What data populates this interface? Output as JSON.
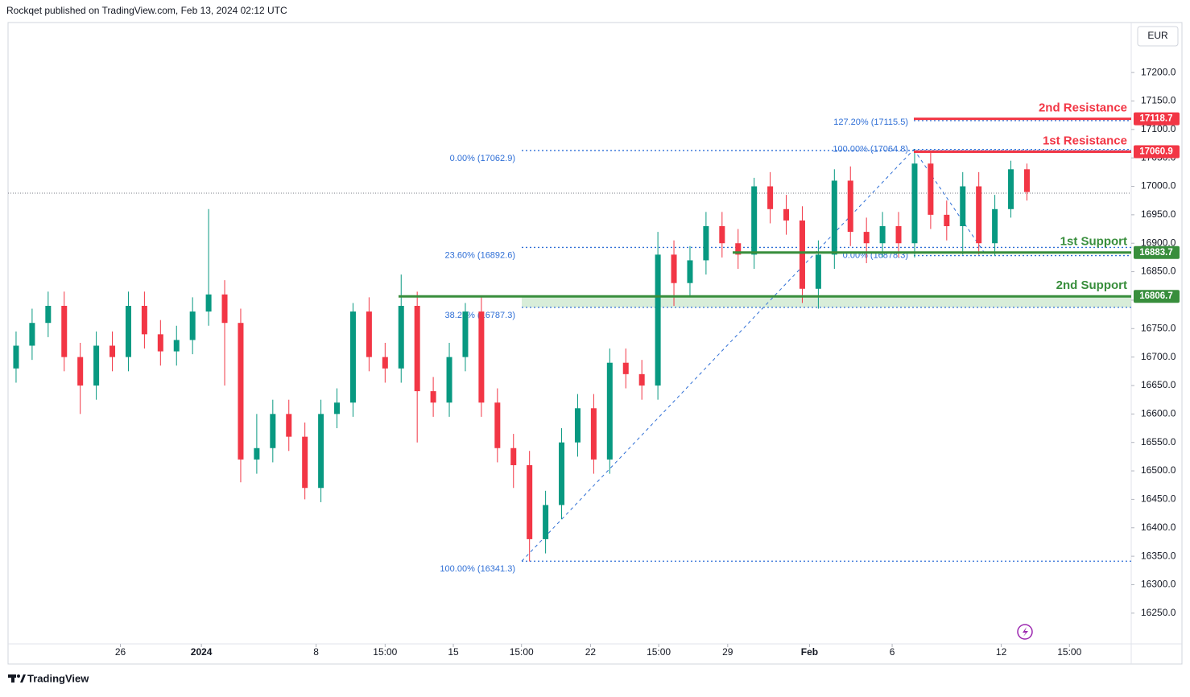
{
  "header": "Rockqet published on TradingView.com, Feb 13, 2024 02:12 UTC",
  "footer": "TradingView",
  "chart_data": {
    "type": "candlestick",
    "currency": "EUR",
    "up_color": "#089981",
    "down_color": "#f23645",
    "fib_color": "#2f6fd6",
    "x": [
      1,
      3,
      5,
      7,
      9,
      11,
      13,
      15,
      17,
      19,
      21,
      23,
      25,
      27,
      29,
      31,
      33,
      35,
      37,
      39,
      41,
      43,
      45,
      47,
      49,
      51,
      53,
      55,
      57,
      59,
      61,
      63,
      65,
      67,
      69,
      71,
      73,
      75,
      77,
      79,
      81,
      83,
      85,
      87,
      89,
      91,
      93,
      95,
      97,
      99,
      101,
      103,
      105,
      107,
      109,
      111,
      113,
      115,
      117,
      119,
      121,
      123,
      125,
      127
    ],
    "open": [
      16680,
      16720,
      16760,
      16790,
      16700,
      16650,
      16720,
      16700,
      16790,
      16740,
      16710,
      16730,
      16780,
      16810,
      16760,
      16520,
      16540,
      16600,
      16560,
      16470,
      16600,
      16620,
      16780,
      16700,
      16680,
      16790,
      16640,
      16620,
      16700,
      16780,
      16620,
      16540,
      16510,
      16380,
      16440,
      16550,
      16610,
      16520,
      16690,
      16670,
      16650,
      16880,
      16830,
      16870,
      16930,
      16900,
      16880,
      17000,
      16960,
      16940,
      16820,
      16880,
      17010,
      16920,
      16900,
      16930,
      16900,
      17040,
      16950,
      16930,
      17000,
      16900,
      16960,
      17030
    ],
    "high": [
      16745,
      16785,
      16815,
      16815,
      16725,
      16745,
      16745,
      16815,
      16815,
      16765,
      16755,
      16805,
      16960,
      16835,
      16785,
      16600,
      16625,
      16625,
      16585,
      16625,
      16645,
      16795,
      16805,
      16725,
      16845,
      16815,
      16665,
      16725,
      16795,
      16805,
      16645,
      16565,
      16535,
      16465,
      16575,
      16635,
      16635,
      16715,
      16715,
      16695,
      16920,
      16905,
      16895,
      16955,
      16955,
      16925,
      17015,
      17025,
      16985,
      16965,
      16905,
      17030,
      17035,
      16945,
      16955,
      16955,
      17065,
      17060,
      16975,
      17025,
      17025,
      16985,
      17045,
      17040
    ],
    "low": [
      16655,
      16695,
      16735,
      16675,
      16600,
      16625,
      16675,
      16675,
      16715,
      16685,
      16685,
      16705,
      16755,
      16650,
      16480,
      16495,
      16515,
      16535,
      16450,
      16445,
      16575,
      16595,
      16675,
      16655,
      16655,
      16550,
      16595,
      16595,
      16675,
      16595,
      16515,
      16470,
      16341,
      16355,
      16415,
      16525,
      16495,
      16495,
      16645,
      16625,
      16625,
      16790,
      16805,
      16845,
      16875,
      16855,
      16855,
      16935,
      16915,
      16795,
      16785,
      16855,
      16895,
      16865,
      16875,
      16875,
      16875,
      16925,
      16905,
      16880,
      16880,
      16878,
      16945,
      16975
    ],
    "close": [
      16720,
      16760,
      16790,
      16700,
      16650,
      16720,
      16700,
      16790,
      16740,
      16710,
      16730,
      16780,
      16810,
      16760,
      16520,
      16540,
      16600,
      16560,
      16470,
      16600,
      16620,
      16780,
      16700,
      16680,
      16790,
      16640,
      16620,
      16700,
      16780,
      16620,
      16540,
      16510,
      16380,
      16440,
      16550,
      16610,
      16520,
      16690,
      16670,
      16650,
      16880,
      16830,
      16870,
      16930,
      16900,
      16880,
      17000,
      16960,
      16940,
      16820,
      16880,
      17010,
      16920,
      16900,
      16930,
      16900,
      17040,
      16950,
      16930,
      17000,
      16900,
      16960,
      17030,
      16990
    ],
    "xlim": [
      0,
      140
    ],
    "xticks": [
      {
        "value": 14,
        "label": "26"
      },
      {
        "value": 24.1,
        "label": "2024"
      },
      {
        "value": 38.4,
        "label": "8"
      },
      {
        "value": 47,
        "label": "15:00"
      },
      {
        "value": 55.5,
        "label": "15"
      },
      {
        "value": 64,
        "label": "15:00"
      },
      {
        "value": 72.6,
        "label": "22"
      },
      {
        "value": 81.1,
        "label": "15:00"
      },
      {
        "value": 89.7,
        "label": "29"
      },
      {
        "value": 99.9,
        "label": "Feb"
      },
      {
        "value": 110.2,
        "label": "6"
      },
      {
        "value": 123.8,
        "label": "12"
      },
      {
        "value": 132.3,
        "label": "15:00"
      }
    ],
    "ylim": [
      16196,
      17285
    ],
    "yticks": [
      {
        "value": 16250,
        "label": "16250.0"
      },
      {
        "value": 16300,
        "label": "16300.0"
      },
      {
        "value": 16350,
        "label": "16350.0"
      },
      {
        "value": 16400,
        "label": "16400.0"
      },
      {
        "value": 16450,
        "label": "16450.0"
      },
      {
        "value": 16500,
        "label": "16500.0"
      },
      {
        "value": 16550,
        "label": "16550.0"
      },
      {
        "value": 16600,
        "label": "16600.0"
      },
      {
        "value": 16650,
        "label": "16650.0"
      },
      {
        "value": 16700,
        "label": "16700.0"
      },
      {
        "value": 16750,
        "label": "16750.0"
      },
      {
        "value": 16800,
        "label": "16800.0"
      },
      {
        "value": 16850,
        "label": "16850.0"
      },
      {
        "value": 16900,
        "label": "16900.0"
      },
      {
        "value": 16950,
        "label": "16950.0"
      },
      {
        "value": 17000,
        "label": "17000.0"
      },
      {
        "value": 17050,
        "label": "17050.0"
      },
      {
        "value": 17100,
        "label": "17100.0"
      },
      {
        "value": 17150,
        "label": "17150.0"
      },
      {
        "value": 17200,
        "label": "17200.0"
      }
    ],
    "last_price": 16988,
    "levels": [
      {
        "name": "2nd Resistance",
        "value": 17118.7,
        "color": "#f23645"
      },
      {
        "name": "1st Resistance",
        "value": 17060.9,
        "color": "#f23645"
      },
      {
        "name": "1st Support",
        "value": 16883.7,
        "color": "#388e3c"
      },
      {
        "name": "2nd Support",
        "value": 16806.7,
        "color": "#388e3c"
      }
    ],
    "fib_left": [
      {
        "value": 17062.9,
        "label": "0.00% (17062.9)"
      },
      {
        "value": 16892.6,
        "label": "23.60% (16892.6)"
      },
      {
        "value": 16787.3,
        "label": "38.20% (16787.3)"
      },
      {
        "value": 16341.3,
        "label": "100.00% (16341.3)"
      }
    ],
    "fib_right": [
      {
        "value": 17115.5,
        "label": "127.20% (17115.5)"
      },
      {
        "value": 17064.8,
        "label": "100.00% (17064.8)"
      },
      {
        "value": 16878.3,
        "label": "0.00% (16878.3)"
      }
    ]
  }
}
